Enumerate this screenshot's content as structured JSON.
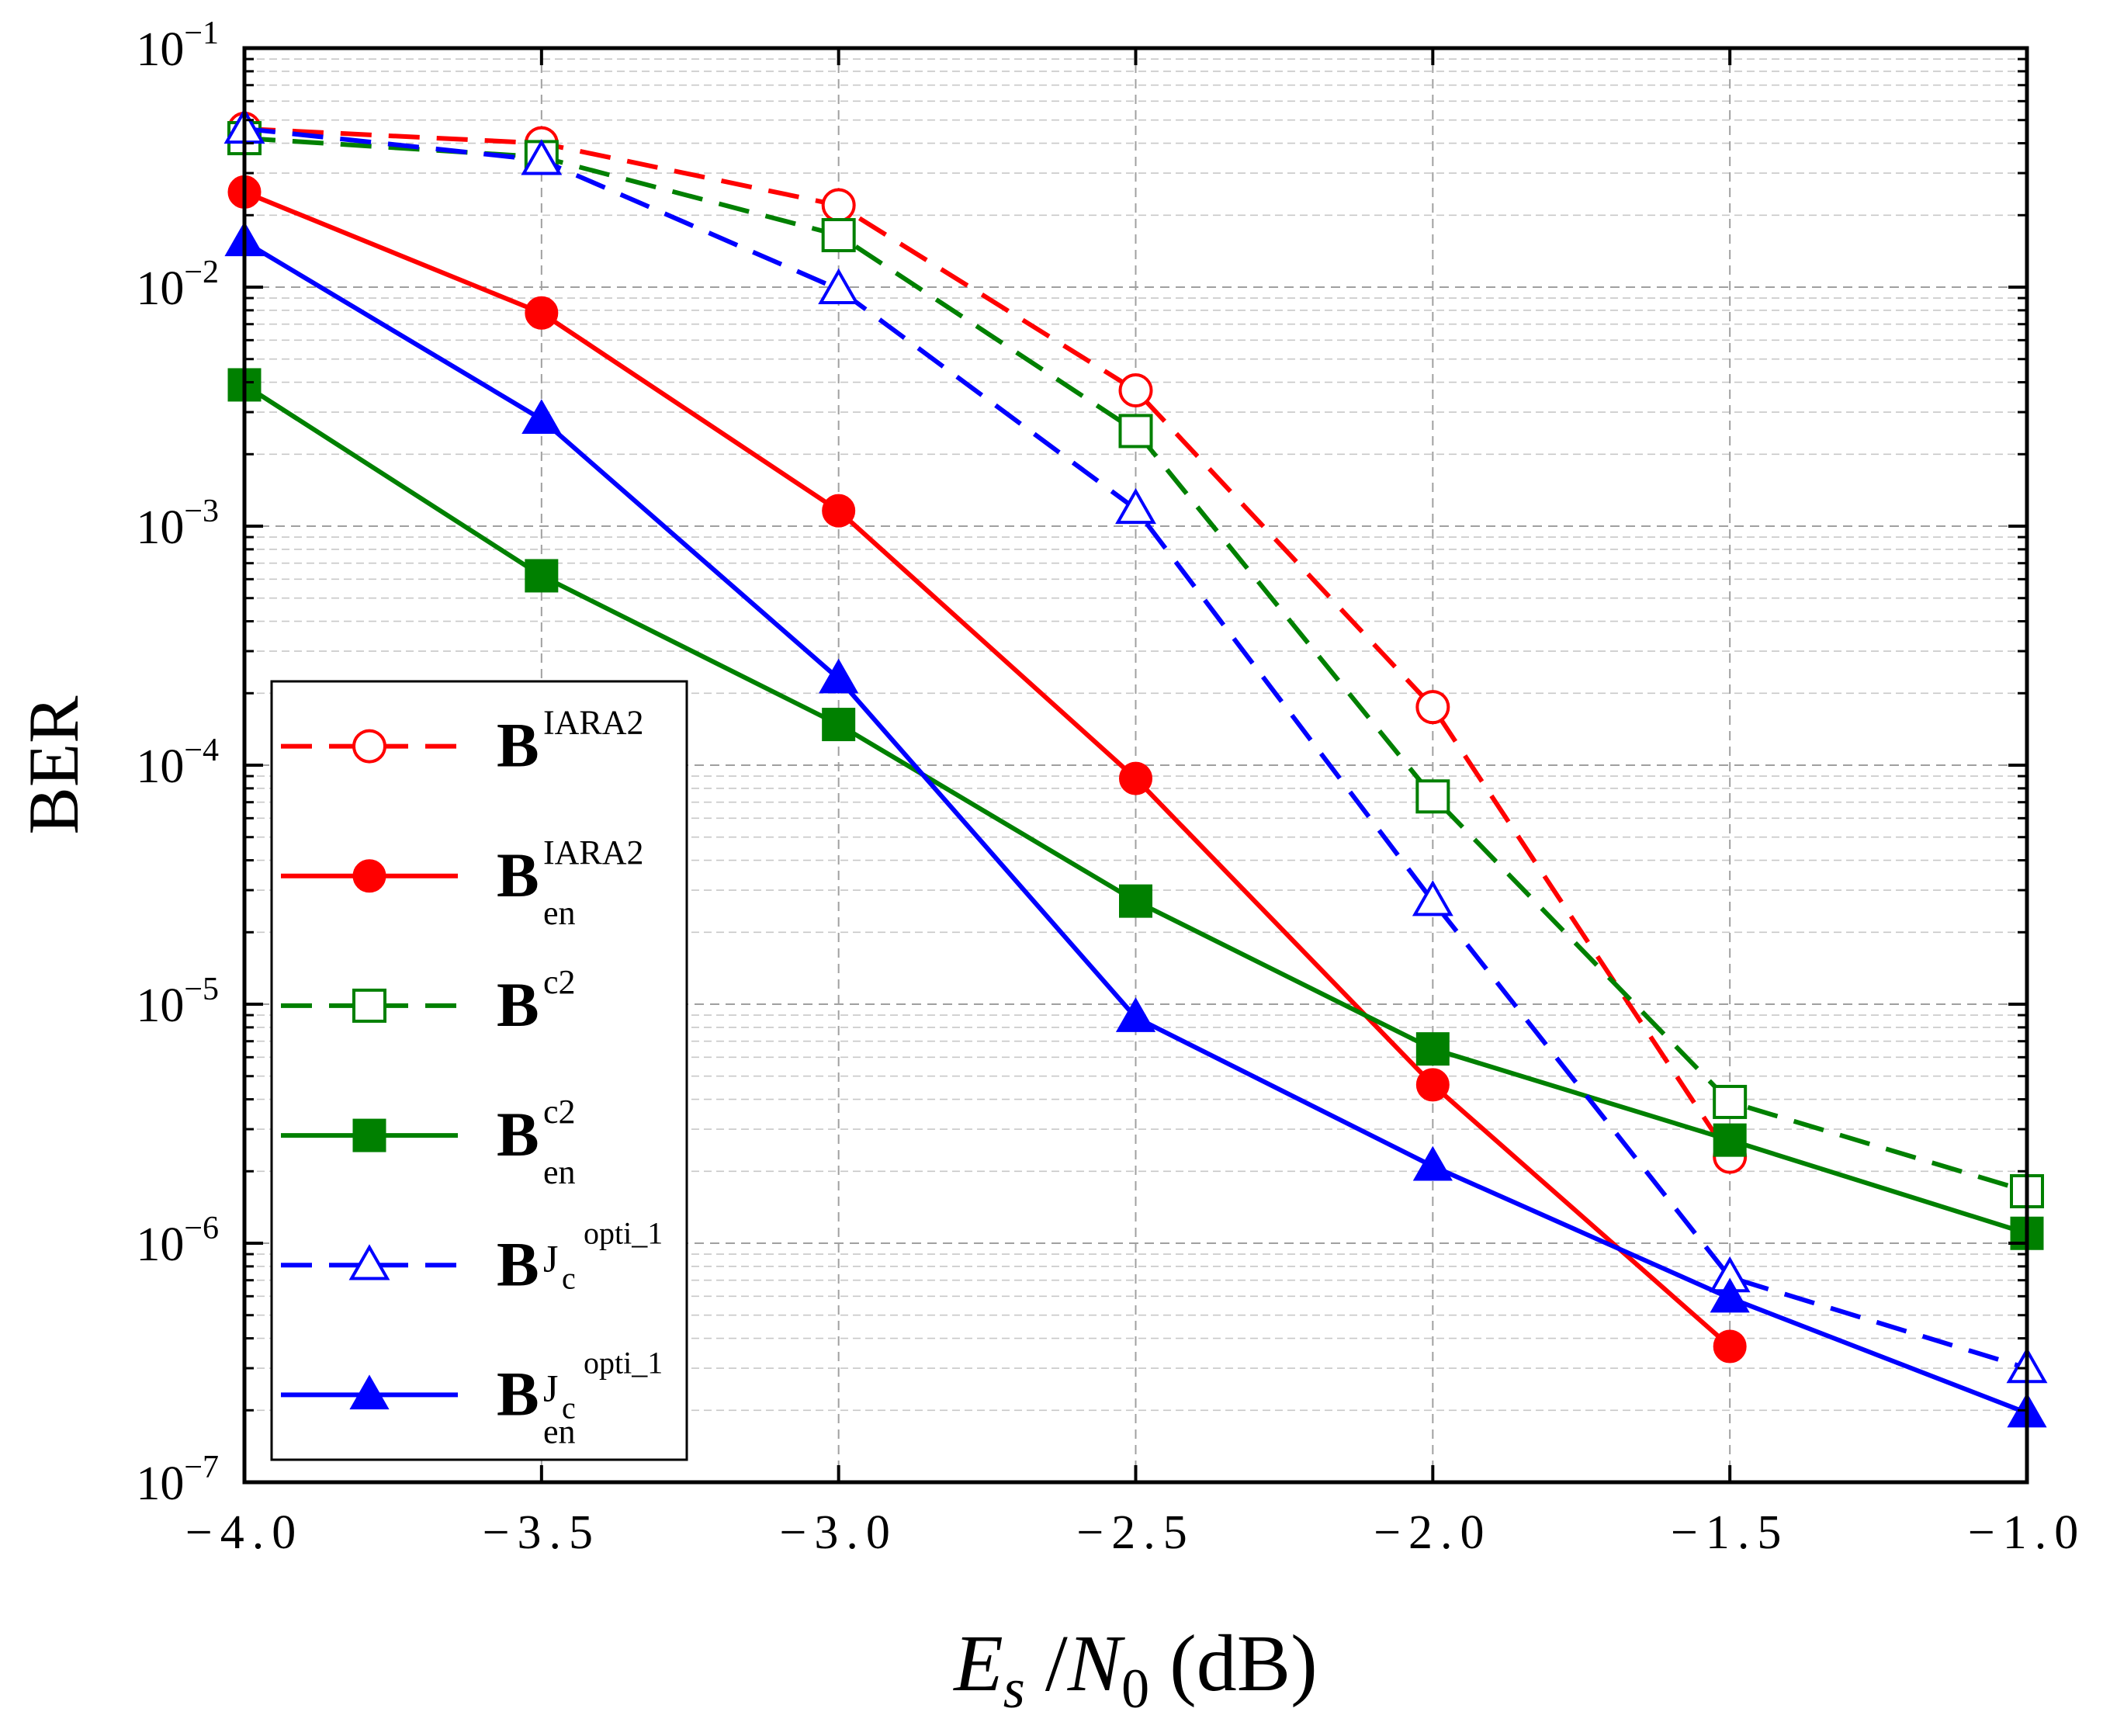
{
  "chart_data": {
    "type": "line",
    "title": "",
    "xlabel": {
      "var": "E",
      "var_sub": "s",
      "slash": "/",
      "var2": "N",
      "var2_sub": "0",
      "unit": "(dB)"
    },
    "ylabel": "BER",
    "xlim": [
      -4.0,
      -1.0
    ],
    "ylim": [
      1e-07,
      0.1
    ],
    "yscale": "log",
    "grid": true,
    "legend_position": "left-center",
    "x_ticks": [
      -4.0,
      -3.5,
      -3.0,
      -2.5,
      -2.0,
      -1.5,
      -1.0
    ],
    "x_tick_labels": [
      "−4.0",
      "−3.5",
      "−3.0",
      "−2.5",
      "−2.0",
      "−1.5",
      "−1.0"
    ],
    "y_ticks": [
      {
        "value": 0.1,
        "base": "10",
        "exp": "−1"
      },
      {
        "value": 0.01,
        "base": "10",
        "exp": "−2"
      },
      {
        "value": 0.001,
        "base": "10",
        "exp": "−3"
      },
      {
        "value": 0.0001,
        "base": "10",
        "exp": "−4"
      },
      {
        "value": 1e-05,
        "base": "10",
        "exp": "−5"
      },
      {
        "value": 1e-06,
        "base": "10",
        "exp": "−6"
      },
      {
        "value": 1e-07,
        "base": "10",
        "exp": "−7"
      }
    ],
    "series": [
      {
        "name": "B^IARA2",
        "legend": {
          "main": "B",
          "sup": "IARA2",
          "sub": "",
          "sup2": ""
        },
        "color": "#ff0000",
        "dash": true,
        "marker": "circle",
        "filled": false,
        "x": [
          -4.0,
          -3.5,
          -3.0,
          -2.5,
          -2.0,
          -1.5
        ],
        "y": [
          0.046,
          0.04,
          0.022,
          0.0037,
          0.000175,
          2.3e-06
        ]
      },
      {
        "name": "B_en^IARA2",
        "legend": {
          "main": "B",
          "sup": "IARA2",
          "sub": "en",
          "sup2": ""
        },
        "color": "#ff0000",
        "dash": false,
        "marker": "circle",
        "filled": true,
        "x": [
          -4.0,
          -3.5,
          -3.0,
          -2.5,
          -2.0,
          -1.5
        ],
        "y": [
          0.025,
          0.0078,
          0.00116,
          8.8e-05,
          4.6e-06,
          3.7e-07
        ]
      },
      {
        "name": "B^c2",
        "legend": {
          "main": "B",
          "sup": "c2",
          "sub": "",
          "sup2": ""
        },
        "color": "#008000",
        "dash": true,
        "marker": "square",
        "filled": false,
        "x": [
          -4.0,
          -3.5,
          -3.0,
          -2.5,
          -2.0,
          -1.5,
          -1.0
        ],
        "y": [
          0.042,
          0.035,
          0.0165,
          0.0025,
          7.4e-05,
          3.9e-06,
          1.65e-06
        ]
      },
      {
        "name": "B_en^c2",
        "legend": {
          "main": "B",
          "sup": "c2",
          "sub": "en",
          "sup2": ""
        },
        "color": "#008000",
        "dash": false,
        "marker": "square",
        "filled": true,
        "x": [
          -4.0,
          -3.5,
          -3.0,
          -2.5,
          -2.0,
          -1.5,
          -1.0
        ],
        "y": [
          0.0039,
          0.00062,
          0.000148,
          2.7e-05,
          6.5e-06,
          2.7e-06,
          1.1e-06
        ]
      },
      {
        "name": "B^Jc^opti_1",
        "legend": {
          "main": "B",
          "sup": "J",
          "sup_sub": "c",
          "sup2": "opti_1",
          "sub": ""
        },
        "color": "#0000ff",
        "dash": true,
        "marker": "triangle",
        "filled": false,
        "x": [
          -4.0,
          -3.5,
          -3.0,
          -2.5,
          -2.0,
          -1.5,
          -1.0
        ],
        "y": [
          0.046,
          0.034,
          0.0098,
          0.00118,
          2.7e-05,
          7.2e-07,
          3e-07
        ]
      },
      {
        "name": "B_en^Jc^opti_1",
        "legend": {
          "main": "B",
          "sup": "J",
          "sup_sub": "c",
          "sup2": "opti_1",
          "sub": "en"
        },
        "color": "#0000ff",
        "dash": false,
        "marker": "triangle",
        "filled": true,
        "x": [
          -4.0,
          -3.5,
          -3.0,
          -2.5,
          -2.0,
          -1.5,
          -1.0
        ],
        "y": [
          0.0155,
          0.0028,
          0.00023,
          8.8e-06,
          2.1e-06,
          5.9e-07,
          1.95e-07
        ]
      }
    ]
  }
}
